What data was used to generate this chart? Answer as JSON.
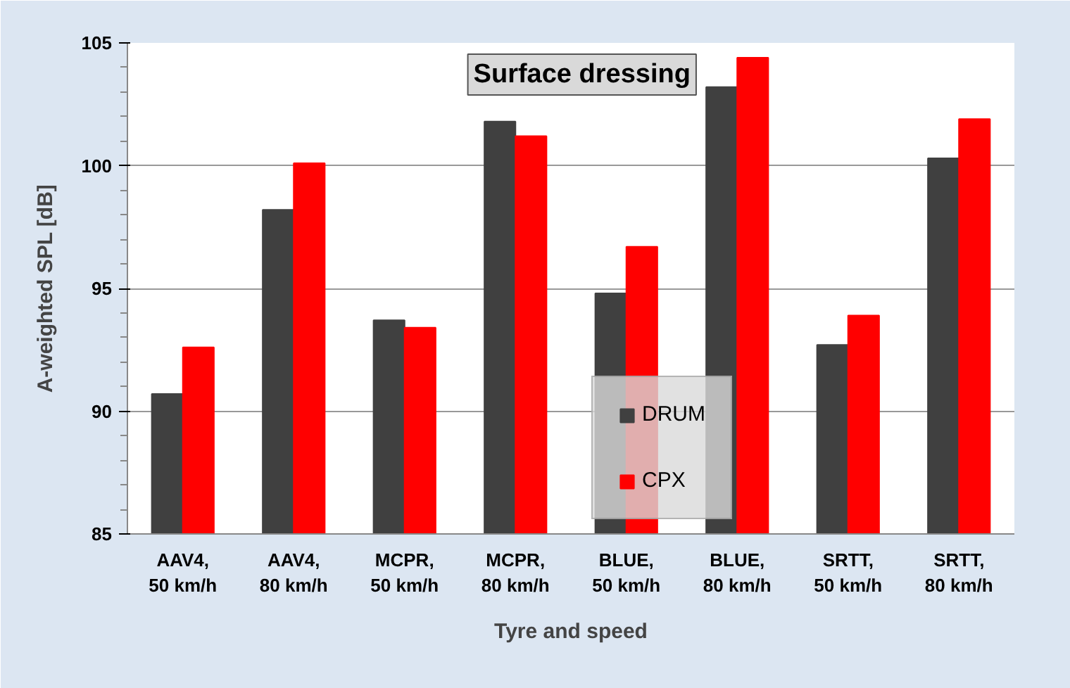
{
  "chart_data": {
    "type": "bar",
    "title": "Surface dressing",
    "xlabel": "Tyre and speed",
    "ylabel": "A-weighted SPL [dB]",
    "categories": [
      "AAV4,\n50 km/h",
      "AAV4,\n80 km/h",
      "MCPR,\n50 km/h",
      "MCPR,\n80 km/h",
      "BLUE,\n50 km/h",
      "BLUE,\n80 km/h",
      "SRTT,\n50 km/h",
      "SRTT,\n80 km/h"
    ],
    "series": [
      {
        "name": "DRUM",
        "color": "#404040",
        "values": [
          90.7,
          98.2,
          93.7,
          101.8,
          94.8,
          103.2,
          92.7,
          100.3
        ]
      },
      {
        "name": "CPX",
        "color": "#ff0000",
        "values": [
          92.6,
          100.1,
          93.4,
          101.2,
          96.7,
          104.4,
          93.9,
          101.9
        ]
      }
    ],
    "ylim": [
      85,
      105
    ],
    "yticks": [
      85,
      {
        "value": 86,
        "label": null
      },
      {
        "value": 87,
        "label": null
      },
      {
        "value": 88,
        "label": null
      },
      {
        "value": 89,
        "label": null
      },
      90,
      {
        "value": 91,
        "label": null
      },
      {
        "value": 92,
        "label": null
      },
      {
        "value": 93,
        "label": null
      },
      {
        "value": 94,
        "label": null
      },
      95,
      {
        "value": 96,
        "label": null
      },
      {
        "value": 97,
        "label": null
      },
      {
        "value": 98,
        "label": null
      },
      {
        "value": 99,
        "label": null
      },
      100,
      {
        "value": 101,
        "label": null
      },
      {
        "value": 102,
        "label": null
      },
      {
        "value": 103,
        "label": null
      },
      {
        "value": 104,
        "label": null
      },
      105
    ],
    "grid": "y",
    "legend": "bottom"
  }
}
